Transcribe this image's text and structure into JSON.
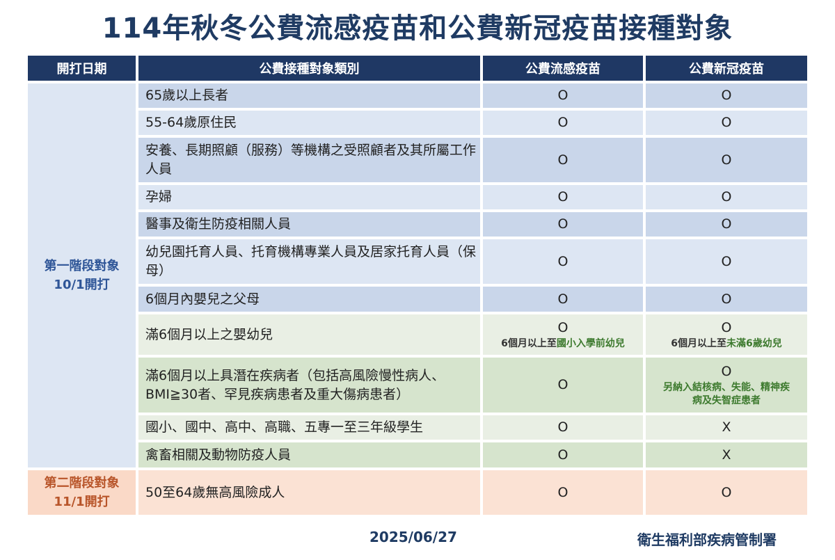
{
  "title": "114年秋冬公費流感疫苗和公費新冠疫苗接種對象",
  "headers": [
    "開打日期",
    "公費接種對象類別",
    "公費流感疫苗",
    "公費新冠疫苗"
  ],
  "phase1": {
    "line1": "第一階段對象",
    "line2": "10/1開打"
  },
  "phase2": {
    "line1": "第二階段對象",
    "line2": "11/1開打"
  },
  "rows": [
    {
      "cat": "65歲以上長者",
      "flu": "O",
      "covid": "O",
      "bg": "b1",
      "h": 35
    },
    {
      "cat": "55-64歲原住民",
      "flu": "O",
      "covid": "O",
      "bg": "b2",
      "h": 35
    },
    {
      "cat": "安養、長期照顧（服務）等機構之受照顧者及其所屬工作人員",
      "flu": "O",
      "covid": "O",
      "bg": "b1",
      "h": 64
    },
    {
      "cat": "孕婦",
      "flu": "O",
      "covid": "O",
      "bg": "b2",
      "h": 35
    },
    {
      "cat": "醫事及衛生防疫相關人員",
      "flu": "O",
      "covid": "O",
      "bg": "b1",
      "h": 35
    },
    {
      "cat": "幼兒園托育人員、托育機構專業人員及居家托育人員（保母）",
      "flu": "O",
      "covid": "O",
      "bg": "b2",
      "h": 64
    },
    {
      "cat": "6個月內嬰兒之父母",
      "flu": "O",
      "covid": "O",
      "bg": "b1",
      "h": 36
    },
    {
      "cat": "滿6個月以上之嬰幼兒",
      "flu": "O",
      "covid": "O",
      "bg": "g1",
      "h": 58,
      "flu_note": [
        {
          "t": "6個月以上至"
        },
        {
          "t": "國小入學前幼兒",
          "g": true
        }
      ],
      "covid_note": [
        {
          "t": "6個月以上至"
        },
        {
          "t": "未滿6歲幼兒",
          "g": true
        }
      ]
    },
    {
      "cat": "滿6個月以上具潛在疾病者（包括高風險慢性病人、BMI≧30者、罕見疾病患者及重大傷病患者）",
      "flu": "O",
      "covid": "O",
      "bg": "g2",
      "h": 79,
      "covid_note": [
        {
          "t": "另納入結核病、失能、精神疾病及失智症患者",
          "g": true
        }
      ]
    },
    {
      "cat": "國小、國中、高中、高職、五專一至三年級學生",
      "flu": "O",
      "covid": "X",
      "bg": "g1",
      "h": 35
    },
    {
      "cat": "禽畜相關及動物防疫人員",
      "flu": "O",
      "covid": "X",
      "bg": "g2",
      "h": 36
    },
    {
      "cat": "50至64歲無高風險成人",
      "flu": "O",
      "covid": "O",
      "bg": "o1",
      "h": 64
    }
  ],
  "footer": {
    "date": "2025/06/27",
    "org": "衛生福利部疾病管制署"
  },
  "colors": {
    "header": "#1f3864",
    "phase1": "#2e5597",
    "phase2": "#b8552a",
    "highlight": "#3d7a2e"
  }
}
